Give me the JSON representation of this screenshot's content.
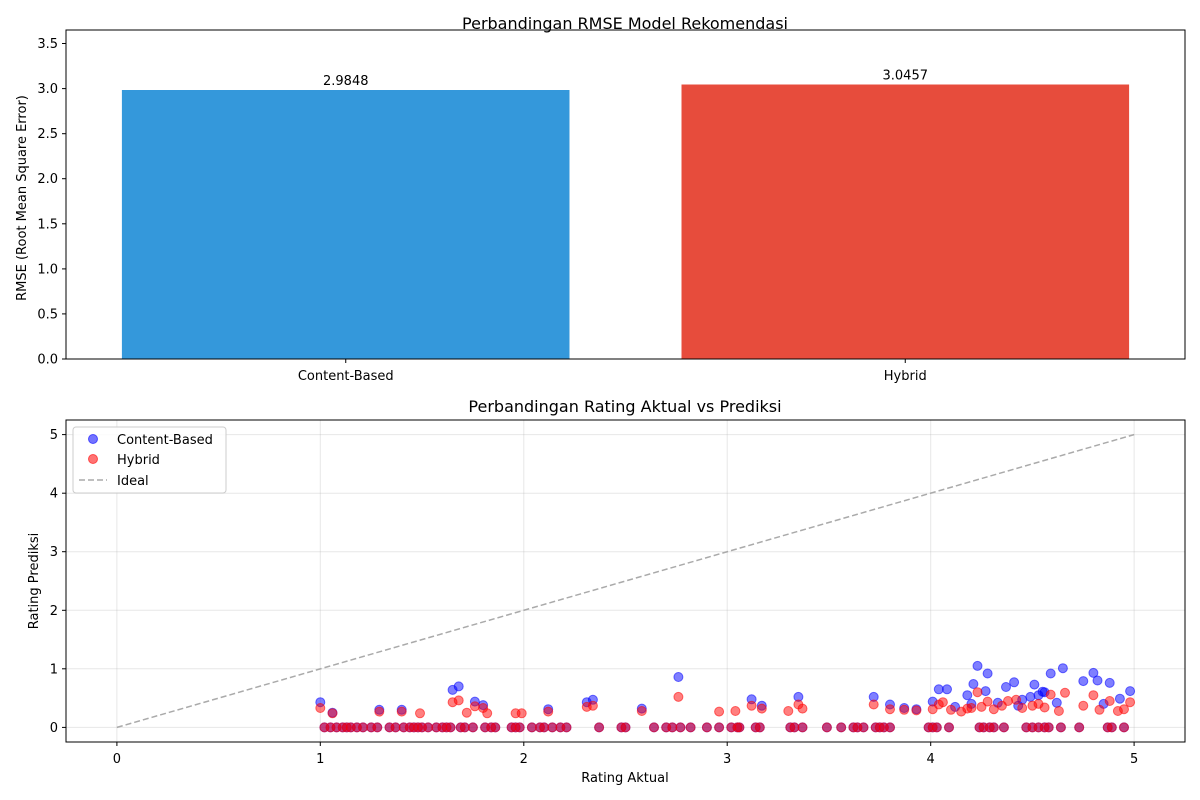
{
  "chart_data": [
    {
      "type": "bar",
      "title": "Perbandingan RMSE Model Rekomendasi",
      "xlabel": "",
      "ylabel": "RMSE (Root Mean Square Error)",
      "categories": [
        "Content-Based",
        "Hybrid"
      ],
      "values": [
        2.9848,
        3.0457
      ],
      "value_labels": [
        "2.9848",
        "3.0457"
      ],
      "colors": [
        "#3498db",
        "#e74c3c"
      ],
      "ylim": [
        0,
        3.65
      ],
      "yticks": [
        0.0,
        0.5,
        1.0,
        1.5,
        2.0,
        2.5,
        3.0,
        3.5
      ],
      "ytick_labels": [
        "0.0",
        "0.5",
        "1.0",
        "1.5",
        "2.0",
        "2.5",
        "3.0",
        "3.5"
      ],
      "grid": false
    },
    {
      "type": "scatter",
      "title": "Perbandingan Rating Aktual vs Prediksi",
      "xlabel": "Rating Aktual",
      "ylabel": "Rating Prediksi",
      "xlim": [
        -0.25,
        5.25
      ],
      "ylim": [
        -0.25,
        5.25
      ],
      "xticks": [
        0,
        1,
        2,
        3,
        4,
        5
      ],
      "xtick_labels": [
        "0",
        "1",
        "2",
        "3",
        "4",
        "5"
      ],
      "yticks": [
        0,
        1,
        2,
        3,
        4,
        5
      ],
      "ytick_labels": [
        "0",
        "1",
        "2",
        "3",
        "4",
        "5"
      ],
      "grid": true,
      "legend_position": "upper-left",
      "series": [
        {
          "name": "Content-Based",
          "color": "#0000ff",
          "x": [
            1.0,
            1.06,
            1.29,
            1.4,
            1.65,
            1.68,
            1.76,
            1.8,
            2.12,
            2.31,
            2.34,
            2.58,
            2.76,
            3.12,
            3.17,
            3.35,
            3.72,
            3.8,
            3.87,
            3.93,
            4.01,
            4.04,
            4.08,
            4.12,
            4.18,
            4.21,
            4.23,
            4.27,
            4.28,
            4.33,
            4.37,
            4.41,
            4.45,
            4.49,
            4.51,
            4.53,
            4.56,
            4.59,
            4.62,
            4.65,
            4.75,
            4.8,
            4.82,
            4.85,
            4.88,
            4.93,
            4.98,
            4.55,
            4.43,
            4.2
          ],
          "y": [
            0.43,
            0.25,
            0.3,
            0.3,
            0.64,
            0.7,
            0.44,
            0.38,
            0.31,
            0.43,
            0.47,
            0.32,
            0.86,
            0.48,
            0.37,
            0.52,
            0.52,
            0.39,
            0.33,
            0.31,
            0.44,
            0.65,
            0.65,
            0.35,
            0.55,
            0.74,
            1.05,
            0.62,
            0.92,
            0.42,
            0.69,
            0.77,
            0.47,
            0.52,
            0.73,
            0.55,
            0.6,
            0.92,
            0.42,
            1.01,
            0.79,
            0.93,
            0.8,
            0.4,
            0.76,
            0.49,
            0.62,
            0.61,
            0.37,
            0.4
          ]
        },
        {
          "name": "Hybrid",
          "color": "#ff0000",
          "x": [
            1.0,
            1.06,
            1.29,
            1.4,
            1.49,
            1.65,
            1.68,
            1.72,
            1.76,
            1.8,
            1.82,
            1.96,
            1.99,
            2.12,
            2.31,
            2.34,
            2.58,
            2.76,
            2.96,
            3.04,
            3.12,
            3.17,
            3.3,
            3.35,
            3.37,
            3.72,
            3.8,
            3.87,
            3.93,
            4.01,
            4.04,
            4.06,
            4.1,
            4.15,
            4.18,
            4.2,
            4.23,
            4.25,
            4.28,
            4.31,
            4.35,
            4.38,
            4.42,
            4.45,
            4.5,
            4.53,
            4.56,
            4.59,
            4.63,
            4.66,
            4.75,
            4.8,
            4.83,
            4.88,
            4.92,
            4.95,
            4.98
          ],
          "y": [
            0.33,
            0.24,
            0.27,
            0.27,
            0.24,
            0.43,
            0.46,
            0.25,
            0.36,
            0.33,
            0.24,
            0.24,
            0.24,
            0.27,
            0.35,
            0.37,
            0.28,
            0.52,
            0.27,
            0.28,
            0.37,
            0.32,
            0.28,
            0.39,
            0.32,
            0.39,
            0.31,
            0.3,
            0.29,
            0.31,
            0.39,
            0.43,
            0.3,
            0.27,
            0.32,
            0.33,
            0.6,
            0.35,
            0.44,
            0.31,
            0.37,
            0.45,
            0.47,
            0.33,
            0.37,
            0.4,
            0.34,
            0.56,
            0.28,
            0.59,
            0.37,
            0.55,
            0.3,
            0.45,
            0.28,
            0.31,
            0.43
          ]
        },
        {
          "name": "Ideal",
          "color": "#aaaaaa",
          "style": "dashed",
          "x": [
            0,
            5
          ],
          "y": [
            0,
            5
          ]
        }
      ],
      "zero_predictions_x": [
        1.02,
        1.05,
        1.08,
        1.11,
        1.13,
        1.15,
        1.18,
        1.21,
        1.25,
        1.28,
        1.34,
        1.37,
        1.41,
        1.44,
        1.46,
        1.48,
        1.5,
        1.53,
        1.57,
        1.6,
        1.62,
        1.64,
        1.69,
        1.71,
        1.75,
        1.81,
        1.84,
        1.86,
        1.94,
        1.96,
        1.98,
        2.04,
        2.08,
        2.1,
        2.14,
        2.18,
        2.21,
        2.37,
        2.48,
        2.5,
        2.64,
        2.7,
        2.73,
        2.77,
        2.82,
        2.9,
        2.96,
        3.02,
        3.05,
        3.06,
        3.14,
        3.16,
        3.31,
        3.33,
        3.37,
        3.49,
        3.56,
        3.62,
        3.64,
        3.67,
        3.73,
        3.75,
        3.77,
        3.8,
        3.99,
        4.01,
        4.03,
        4.09,
        4.24,
        4.26,
        4.29,
        4.31,
        4.36,
        4.47,
        4.5,
        4.53,
        4.56,
        4.58,
        4.64,
        4.73,
        4.87,
        4.89,
        4.95
      ]
    }
  ]
}
